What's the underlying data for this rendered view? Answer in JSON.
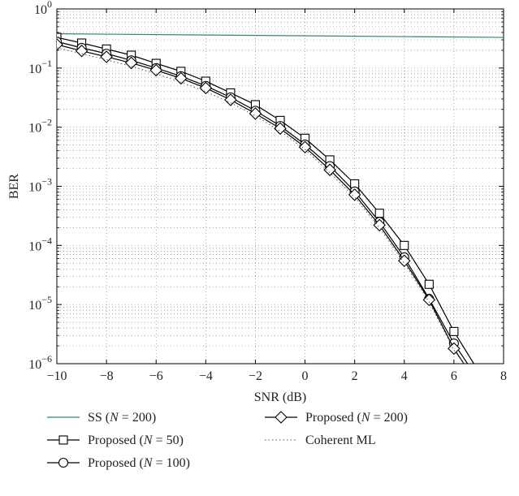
{
  "chart_data": {
    "type": "line",
    "title": "",
    "xlabel": "SNR (dB)",
    "ylabel": "BER",
    "xlim": [
      -10,
      8
    ],
    "ylim_log10": [
      -6,
      0
    ],
    "yscale": "log",
    "grid": true,
    "legend_placement": "below",
    "x_ticks": [
      "−10",
      "−8",
      "−6",
      "−4",
      "−2",
      "0",
      "2",
      "4",
      "6",
      "8"
    ],
    "x_tick_values": [
      -10,
      -8,
      -6,
      -4,
      -2,
      0,
      2,
      4,
      6,
      8
    ],
    "y_ticks": [
      {
        "exp": -6,
        "base": "10",
        "sup": "−6"
      },
      {
        "exp": -5,
        "base": "10",
        "sup": "−5"
      },
      {
        "exp": -4,
        "base": "10",
        "sup": "−4"
      },
      {
        "exp": -3,
        "base": "10",
        "sup": "−3"
      },
      {
        "exp": -2,
        "base": "10",
        "sup": "−2"
      },
      {
        "exp": -1,
        "base": "10",
        "sup": "−1"
      },
      {
        "exp": 0,
        "base": "10",
        "sup": "0"
      }
    ],
    "series": [
      {
        "name": "SS (N = 200)",
        "legend_prefix": "SS (",
        "legend_var": "N",
        "legend_suffix": " = 200)",
        "color": "#2e8b57",
        "marker": "none",
        "dash": "solid",
        "x": [
          -10,
          8
        ],
        "y": [
          0.38,
          0.33
        ]
      },
      {
        "name": "Proposed (N = 50)",
        "legend_prefix": "Proposed (",
        "legend_var": "N",
        "legend_suffix": " = 50)",
        "color": "#000000",
        "marker": "square",
        "dash": "solid",
        "x": [
          -10,
          -9,
          -8,
          -7,
          -6,
          -5,
          -4,
          -3,
          -2,
          -1,
          0,
          1,
          2,
          3,
          4,
          5,
          6,
          6.8
        ],
        "y": [
          0.33,
          0.265,
          0.21,
          0.165,
          0.12,
          0.088,
          0.06,
          0.038,
          0.024,
          0.013,
          0.0065,
          0.0028,
          0.0011,
          0.00035,
          0.0001,
          2.2e-05,
          3.5e-06,
          1e-06
        ]
      },
      {
        "name": "Proposed (N = 100)",
        "legend_prefix": "Proposed (",
        "legend_var": "N",
        "legend_suffix": " = 100)",
        "color": "#000000",
        "marker": "circle",
        "dash": "solid",
        "x": [
          -10,
          -9,
          -8,
          -7,
          -6,
          -5,
          -4,
          -3,
          -2,
          -1,
          0,
          1,
          2,
          3,
          4,
          5,
          6,
          6.55
        ],
        "y": [
          0.28,
          0.22,
          0.175,
          0.135,
          0.1,
          0.073,
          0.05,
          0.032,
          0.019,
          0.0105,
          0.0051,
          0.0022,
          0.00082,
          0.00025,
          6.3e-05,
          1.25e-05,
          2.2e-06,
          1e-06
        ]
      },
      {
        "name": "Proposed (N = 200)",
        "legend_prefix": "Proposed (",
        "legend_var": "N",
        "legend_suffix": " = 200)",
        "color": "#000000",
        "marker": "diamond",
        "dash": "solid",
        "x": [
          -10,
          -9,
          -8,
          -7,
          -6,
          -5,
          -4,
          -3,
          -2,
          -1,
          0,
          1,
          2,
          3,
          4,
          5,
          6,
          6.4
        ],
        "y": [
          0.25,
          0.195,
          0.155,
          0.122,
          0.092,
          0.067,
          0.046,
          0.029,
          0.017,
          0.0095,
          0.0046,
          0.0019,
          0.00072,
          0.00022,
          5.5e-05,
          1.2e-05,
          1.8e-06,
          1e-06
        ]
      },
      {
        "name": "Coherent ML",
        "legend_prefix": "Coherent ML",
        "legend_var": "",
        "legend_suffix": "",
        "color": "#555555",
        "marker": "none",
        "dash": "dotted",
        "x": [
          -10,
          -9,
          -8,
          -7,
          -6,
          -5,
          -4,
          -3,
          -2,
          -1,
          0,
          1,
          2,
          3,
          4,
          5,
          6,
          6.4
        ],
        "y": [
          0.22,
          0.175,
          0.138,
          0.107,
          0.08,
          0.058,
          0.04,
          0.026,
          0.0155,
          0.0086,
          0.0042,
          0.0017,
          0.00065,
          0.0002,
          5e-05,
          1.1e-05,
          1.7e-06,
          1e-06
        ]
      }
    ]
  }
}
